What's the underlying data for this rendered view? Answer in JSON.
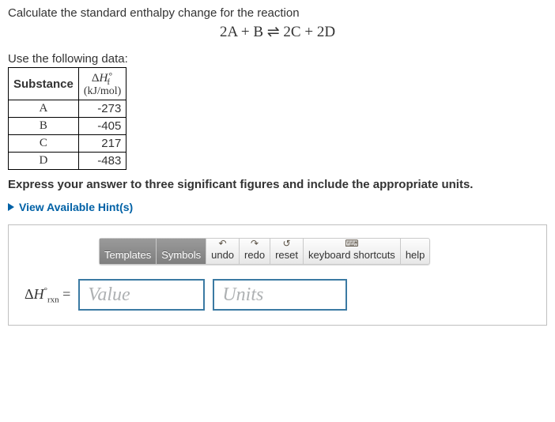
{
  "prompt": "Calculate the standard enthalpy change for the reaction",
  "equation": "2A + B ⇌ 2C + 2D",
  "use_data_label": "Use the following data:",
  "table": {
    "header_substance": "Substance",
    "header_dH_html": "ΔH°𝑓",
    "header_units": "(kJ/mol)",
    "rows": [
      {
        "substance": "A",
        "value": "-273"
      },
      {
        "substance": "B",
        "value": "-405"
      },
      {
        "substance": "C",
        "value": "217"
      },
      {
        "substance": "D",
        "value": "-483"
      }
    ]
  },
  "instruction": "Express your answer to three significant figures and include the appropriate units.",
  "hints_label": "View Available Hint(s)",
  "toolbar": {
    "templates": "Templates",
    "symbols": "Symbols",
    "undo": "undo",
    "redo": "redo",
    "reset": "reset",
    "keyboard": "keyboard shortcuts",
    "help": "help"
  },
  "answer": {
    "lhs_prefix": "Δ",
    "lhs_var": "H",
    "lhs_sup": "°",
    "lhs_sub": "rxn",
    "equals": " = ",
    "value_placeholder": "Value",
    "units_placeholder": "Units"
  },
  "colors": {
    "link": "#0061a6",
    "field_border": "#3b7aa3",
    "placeholder": "#aeb1b3"
  }
}
